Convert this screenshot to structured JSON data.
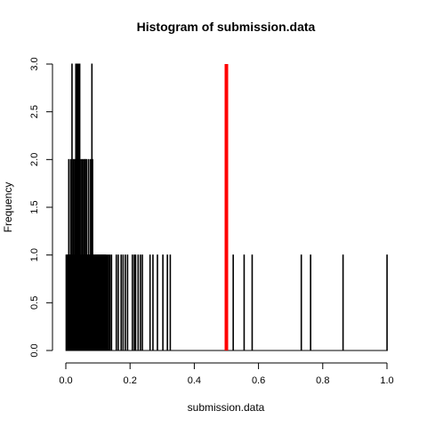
{
  "chart_data": {
    "type": "bar",
    "title": "Histogram of submission.data",
    "xlabel": "submission.data",
    "ylabel": "Frequency",
    "xlim": [
      0,
      1
    ],
    "ylim": [
      0,
      3
    ],
    "x_ticks": [
      "0.0",
      "0.2",
      "0.4",
      "0.6",
      "0.8",
      "1.0"
    ],
    "y_ticks": [
      "0.0",
      "0.5",
      "1.0",
      "1.5",
      "2.0",
      "2.5",
      "3.0"
    ],
    "reference_line": {
      "x": 0.5,
      "y_top": 3,
      "color": "#ff0000"
    },
    "bars": [
      {
        "x": 0.001,
        "value": 1
      },
      {
        "x": 0.003,
        "value": 1
      },
      {
        "x": 0.005,
        "value": 1
      },
      {
        "x": 0.007,
        "value": 1
      },
      {
        "x": 0.009,
        "value": 2
      },
      {
        "x": 0.011,
        "value": 1
      },
      {
        "x": 0.013,
        "value": 1
      },
      {
        "x": 0.015,
        "value": 2
      },
      {
        "x": 0.017,
        "value": 1
      },
      {
        "x": 0.019,
        "value": 3
      },
      {
        "x": 0.021,
        "value": 1
      },
      {
        "x": 0.023,
        "value": 2
      },
      {
        "x": 0.025,
        "value": 2
      },
      {
        "x": 0.027,
        "value": 1
      },
      {
        "x": 0.029,
        "value": 2
      },
      {
        "x": 0.031,
        "value": 3
      },
      {
        "x": 0.033,
        "value": 3
      },
      {
        "x": 0.035,
        "value": 3
      },
      {
        "x": 0.037,
        "value": 3
      },
      {
        "x": 0.039,
        "value": 3
      },
      {
        "x": 0.041,
        "value": 2
      },
      {
        "x": 0.043,
        "value": 3
      },
      {
        "x": 0.045,
        "value": 1
      },
      {
        "x": 0.047,
        "value": 2
      },
      {
        "x": 0.049,
        "value": 1
      },
      {
        "x": 0.051,
        "value": 2
      },
      {
        "x": 0.053,
        "value": 1
      },
      {
        "x": 0.055,
        "value": 2
      },
      {
        "x": 0.057,
        "value": 1
      },
      {
        "x": 0.059,
        "value": 2
      },
      {
        "x": 0.061,
        "value": 2
      },
      {
        "x": 0.063,
        "value": 1
      },
      {
        "x": 0.065,
        "value": 2
      },
      {
        "x": 0.067,
        "value": 1
      },
      {
        "x": 0.069,
        "value": 1
      },
      {
        "x": 0.071,
        "value": 2
      },
      {
        "x": 0.073,
        "value": 1
      },
      {
        "x": 0.075,
        "value": 1
      },
      {
        "x": 0.077,
        "value": 2
      },
      {
        "x": 0.079,
        "value": 1
      },
      {
        "x": 0.081,
        "value": 3
      },
      {
        "x": 0.083,
        "value": 2
      },
      {
        "x": 0.085,
        "value": 1
      },
      {
        "x": 0.087,
        "value": 1
      },
      {
        "x": 0.089,
        "value": 1
      },
      {
        "x": 0.091,
        "value": 1
      },
      {
        "x": 0.093,
        "value": 1
      },
      {
        "x": 0.095,
        "value": 1
      },
      {
        "x": 0.097,
        "value": 1
      },
      {
        "x": 0.099,
        "value": 1
      },
      {
        "x": 0.101,
        "value": 1
      },
      {
        "x": 0.103,
        "value": 1
      },
      {
        "x": 0.105,
        "value": 1
      },
      {
        "x": 0.107,
        "value": 1
      },
      {
        "x": 0.109,
        "value": 1
      },
      {
        "x": 0.111,
        "value": 1
      },
      {
        "x": 0.113,
        "value": 1
      },
      {
        "x": 0.115,
        "value": 1
      },
      {
        "x": 0.117,
        "value": 1
      },
      {
        "x": 0.119,
        "value": 1
      },
      {
        "x": 0.121,
        "value": 1
      },
      {
        "x": 0.123,
        "value": 1
      },
      {
        "x": 0.125,
        "value": 1
      },
      {
        "x": 0.129,
        "value": 1
      },
      {
        "x": 0.133,
        "value": 1
      },
      {
        "x": 0.137,
        "value": 1
      },
      {
        "x": 0.142,
        "value": 1
      },
      {
        "x": 0.157,
        "value": 1
      },
      {
        "x": 0.163,
        "value": 1
      },
      {
        "x": 0.172,
        "value": 1
      },
      {
        "x": 0.178,
        "value": 1
      },
      {
        "x": 0.185,
        "value": 1
      },
      {
        "x": 0.192,
        "value": 1
      },
      {
        "x": 0.207,
        "value": 1
      },
      {
        "x": 0.213,
        "value": 1
      },
      {
        "x": 0.217,
        "value": 1
      },
      {
        "x": 0.225,
        "value": 1
      },
      {
        "x": 0.232,
        "value": 1
      },
      {
        "x": 0.238,
        "value": 1
      },
      {
        "x": 0.262,
        "value": 1
      },
      {
        "x": 0.271,
        "value": 1
      },
      {
        "x": 0.285,
        "value": 1
      },
      {
        "x": 0.302,
        "value": 1
      },
      {
        "x": 0.316,
        "value": 1
      },
      {
        "x": 0.325,
        "value": 1
      },
      {
        "x": 0.502,
        "value": 1
      },
      {
        "x": 0.521,
        "value": 1
      },
      {
        "x": 0.555,
        "value": 1
      },
      {
        "x": 0.58,
        "value": 1
      },
      {
        "x": 0.733,
        "value": 1
      },
      {
        "x": 0.762,
        "value": 1
      },
      {
        "x": 0.863,
        "value": 1
      },
      {
        "x": 1.0,
        "value": 1
      }
    ]
  }
}
